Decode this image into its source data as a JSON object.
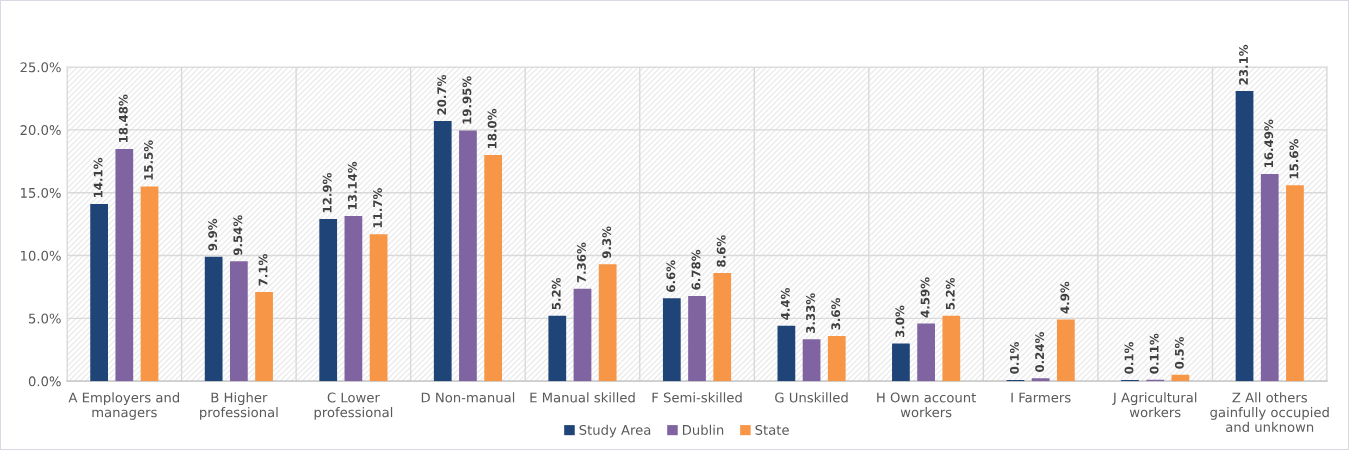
{
  "chart_data": {
    "type": "bar",
    "categories": [
      "A Employers and\nmanagers",
      "B Higher\nprofessional",
      "C Lower\nprofessional",
      "D Non-manual",
      "E Manual skilled",
      "F Semi-skilled",
      "G Unskilled",
      "H Own account\nworkers",
      "I Farmers",
      "J Agricultural\nworkers",
      "Z All others\ngainfully occupied\nand unknown"
    ],
    "series": [
      {
        "name": "Study Area",
        "color": "#1f4478",
        "values": [
          14.1,
          9.9,
          12.9,
          20.7,
          5.2,
          6.6,
          4.4,
          3.0,
          0.1,
          0.1,
          23.1
        ],
        "value_labels": [
          "14.1%",
          "9.9%",
          "12.9%",
          "20.7%",
          "5.2%",
          "6.6%",
          "4.4%",
          "3.0%",
          "0.1%",
          "0.1%",
          "23.1%"
        ]
      },
      {
        "name": "Dublin",
        "color": "#8064a2",
        "values": [
          18.48,
          9.54,
          13.14,
          19.95,
          7.36,
          6.78,
          3.33,
          4.59,
          0.24,
          0.11,
          16.49
        ],
        "value_labels": [
          "18.48%",
          "9.54%",
          "13.14%",
          "19.95%",
          "7.36%",
          "6.78%",
          "3.33%",
          "4.59%",
          "0.24%",
          "0.11%",
          "16.49%"
        ]
      },
      {
        "name": "State",
        "color": "#f79646",
        "values": [
          15.5,
          7.1,
          11.7,
          18.0,
          9.3,
          8.6,
          3.6,
          5.2,
          4.9,
          0.5,
          15.6
        ],
        "value_labels": [
          "15.5%",
          "7.1%",
          "11.7%",
          "18.0%",
          "9.3%",
          "8.6%",
          "3.6%",
          "5.2%",
          "4.9%",
          "0.5%",
          "15.6%"
        ]
      }
    ],
    "ylim": [
      0,
      25
    ],
    "yticks": [
      {
        "value": 0,
        "label": "0.0%"
      },
      {
        "value": 5,
        "label": "5.0%"
      },
      {
        "value": 10,
        "label": "10.0%"
      },
      {
        "value": 15,
        "label": "15.0%"
      },
      {
        "value": 20,
        "label": "20.0%"
      },
      {
        "value": 25,
        "label": "25.0%"
      }
    ],
    "grid": true,
    "legend": "bottom"
  }
}
